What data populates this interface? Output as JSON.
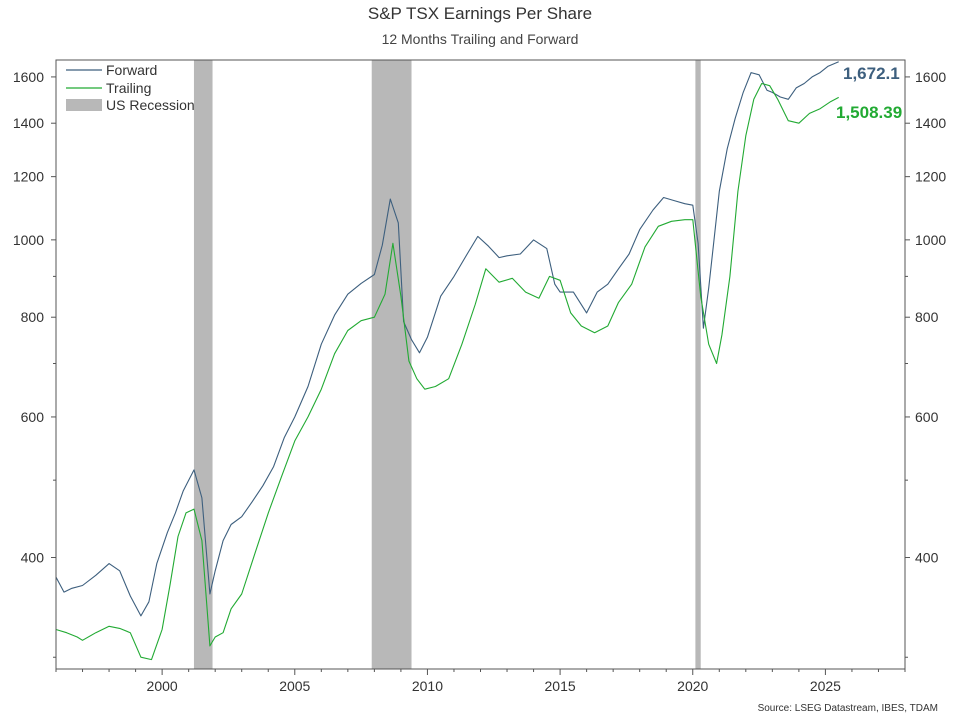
{
  "chart_data": {
    "type": "line",
    "title": "S&P TSX Earnings Per Share",
    "subtitle": "12 Months Trailing and Forward",
    "source": "Source: LSEG Datastream, IBES, TDAM",
    "y_scale": "log",
    "ylim": [
      290,
      1680
    ],
    "xlim": [
      1996.0,
      2028.0
    ],
    "y_ticks": [
      "400",
      "600",
      "800",
      "1000",
      "1200",
      "1400",
      "1600"
    ],
    "y_tick_values": [
      400,
      600,
      800,
      1000,
      1200,
      1400,
      1600
    ],
    "x_ticks": [
      "2000",
      "2005",
      "2010",
      "2015",
      "2020",
      "2025"
    ],
    "x_tick_values": [
      2000,
      2005,
      2010,
      2015,
      2020,
      2025
    ],
    "legend_placement": "top-left",
    "legend": {
      "forward": "Forward",
      "trailing": "Trailing",
      "recession": "US Recession"
    },
    "end_labels": {
      "forward": "1,672.1",
      "trailing": "1,508.39"
    },
    "colors": {
      "forward": "#3d5f7e",
      "trailing": "#22aa33",
      "recession": "#b8b8b8"
    },
    "recessions": [
      [
        2001.2,
        2001.9
      ],
      [
        2007.9,
        2009.4
      ],
      [
        2020.1,
        2020.3
      ]
    ],
    "series": [
      {
        "name": "Forward",
        "x": [
          1996.0,
          1996.3,
          1996.6,
          1997.0,
          1997.5,
          1998.0,
          1998.4,
          1998.8,
          1999.2,
          1999.5,
          1999.8,
          2000.2,
          2000.5,
          2000.8,
          2001.2,
          2001.5,
          2001.8,
          2002.0,
          2002.3,
          2002.6,
          2003.0,
          2003.4,
          2003.8,
          2004.2,
          2004.6,
          2005.0,
          2005.5,
          2006.0,
          2006.5,
          2007.0,
          2007.5,
          2008.0,
          2008.3,
          2008.6,
          2008.9,
          2009.1,
          2009.4,
          2009.7,
          2010.0,
          2010.5,
          2011.0,
          2011.5,
          2011.9,
          2012.3,
          2012.7,
          2013.0,
          2013.5,
          2014.0,
          2014.5,
          2014.8,
          2015.0,
          2015.5,
          2016.0,
          2016.4,
          2016.8,
          2017.2,
          2017.6,
          2018.0,
          2018.5,
          2018.9,
          2019.3,
          2019.7,
          2020.0,
          2020.2,
          2020.4,
          2020.6,
          2020.8,
          2021.0,
          2021.3,
          2021.6,
          2021.9,
          2022.2,
          2022.5,
          2022.8,
          2023.0,
          2023.3,
          2023.6,
          2023.9,
          2024.2,
          2024.5,
          2024.8,
          2025.1,
          2025.5
        ],
        "values": [
          378,
          362,
          366,
          369,
          380,
          393,
          385,
          358,
          338,
          352,
          393,
          430,
          455,
          485,
          515,
          475,
          360,
          385,
          420,
          440,
          450,
          470,
          492,
          520,
          565,
          600,
          655,
          740,
          805,
          855,
          882,
          905,
          985,
          1125,
          1050,
          790,
          750,
          722,
          755,
          850,
          900,
          960,
          1010,
          982,
          950,
          955,
          960,
          1000,
          975,
          880,
          860,
          860,
          810,
          860,
          880,
          920,
          960,
          1030,
          1090,
          1130,
          1120,
          1110,
          1105,
          990,
          775,
          870,
          1000,
          1150,
          1300,
          1420,
          1530,
          1620,
          1610,
          1540,
          1530,
          1510,
          1500,
          1550,
          1570,
          1600,
          1620,
          1650,
          1672
        ]
      },
      {
        "name": "Trailing",
        "x": [
          1996.0,
          1996.4,
          1996.8,
          1997.0,
          1997.5,
          1998.0,
          1998.4,
          1998.8,
          1999.2,
          1999.6,
          2000.0,
          2000.3,
          2000.6,
          2000.9,
          2001.2,
          2001.5,
          2001.8,
          2002.0,
          2002.3,
          2002.6,
          2003.0,
          2003.5,
          2004.0,
          2004.5,
          2005.0,
          2005.5,
          2006.0,
          2006.5,
          2007.0,
          2007.5,
          2008.0,
          2008.4,
          2008.7,
          2009.0,
          2009.3,
          2009.6,
          2009.9,
          2010.3,
          2010.8,
          2011.3,
          2011.8,
          2012.2,
          2012.7,
          2013.2,
          2013.7,
          2014.2,
          2014.6,
          2015.0,
          2015.4,
          2015.8,
          2016.3,
          2016.8,
          2017.2,
          2017.7,
          2018.2,
          2018.7,
          2019.2,
          2019.7,
          2020.0,
          2020.3,
          2020.6,
          2020.9,
          2021.1,
          2021.4,
          2021.7,
          2022.0,
          2022.3,
          2022.6,
          2022.9,
          2023.2,
          2023.6,
          2024.0,
          2024.4,
          2024.8,
          2025.2,
          2025.5
        ],
        "values": [
          325,
          322,
          318,
          315,
          322,
          328,
          326,
          322,
          300,
          298,
          325,
          370,
          425,
          455,
          460,
          420,
          310,
          318,
          322,
          345,
          360,
          405,
          455,
          505,
          560,
          600,
          650,
          720,
          770,
          792,
          800,
          855,
          990,
          850,
          705,
          670,
          650,
          655,
          670,
          740,
          830,
          920,
          885,
          895,
          860,
          845,
          900,
          890,
          810,
          780,
          765,
          780,
          835,
          880,
          980,
          1040,
          1055,
          1060,
          1060,
          850,
          740,
          700,
          760,
          900,
          1150,
          1350,
          1500,
          1570,
          1560,
          1500,
          1410,
          1400,
          1440,
          1460,
          1490,
          1508
        ]
      }
    ]
  }
}
